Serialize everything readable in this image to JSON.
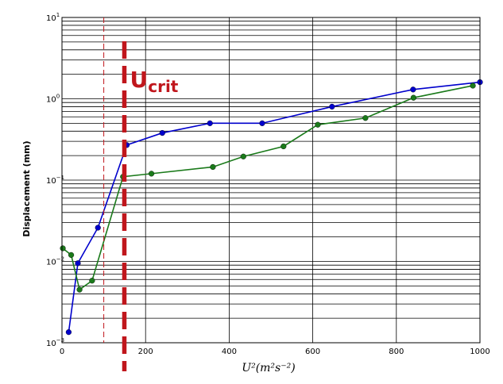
{
  "chart_data": {
    "type": "line",
    "xlabel": "U²(m²s⁻²)",
    "ylabel": "Displacement (mm)",
    "xlim": [
      0,
      1000
    ],
    "ylim": [
      0.001,
      10
    ],
    "yscale": "log",
    "grid": true,
    "x_ticks": [
      "0",
      "200",
      "400",
      "600",
      "800",
      "1000"
    ],
    "y_ticks": [
      {
        "base": "10",
        "exp": "−3"
      },
      {
        "base": "10",
        "exp": "−2"
      },
      {
        "base": "10",
        "exp": "−1"
      },
      {
        "base": "10",
        "exp": "0"
      },
      {
        "base": "10",
        "exp": "1"
      }
    ],
    "series": [
      {
        "color": "#0000cc",
        "points": [
          [
            16,
            0.00135
          ],
          [
            38,
            0.0095
          ],
          [
            86,
            0.026
          ],
          [
            155,
            0.27
          ],
          [
            240,
            0.38
          ],
          [
            354,
            0.5
          ],
          [
            479,
            0.5
          ],
          [
            646,
            0.8
          ],
          [
            840,
            1.3
          ],
          [
            1000,
            1.6
          ]
        ]
      },
      {
        "color": "#1a7a1a",
        "points": [
          [
            2,
            0.0145
          ],
          [
            22,
            0.012
          ],
          [
            42,
            0.0045
          ],
          [
            72,
            0.0058
          ],
          [
            146,
            0.11
          ],
          [
            214,
            0.12
          ],
          [
            361,
            0.145
          ],
          [
            434,
            0.195
          ],
          [
            530,
            0.26
          ],
          [
            612,
            0.48
          ],
          [
            726,
            0.58
          ],
          [
            841,
            1.03
          ],
          [
            983,
            1.45
          ]
        ]
      }
    ],
    "annotations": [
      {
        "label_main": "U",
        "label_sub": "crit",
        "x": 115,
        "color": "#c0161c"
      }
    ],
    "thin_dashed_line_x": 100
  }
}
